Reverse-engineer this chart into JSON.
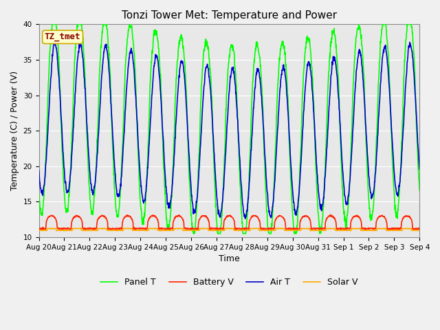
{
  "title": "Tonzi Tower Met: Temperature and Power",
  "xlabel": "Time",
  "ylabel": "Temperature (C) / Power (V)",
  "ylim": [
    10,
    40
  ],
  "n_days": 15,
  "bg_color": "#e8e8e8",
  "fig_color": "#f0f0f0",
  "grid_color": "#ffffff",
  "series": {
    "panel_t": {
      "label": "Panel T",
      "color": "#00ff00",
      "lw": 1.2
    },
    "battery_v": {
      "label": "Battery V",
      "color": "#ff2200",
      "lw": 1.2
    },
    "air_t": {
      "label": "Air T",
      "color": "#0000cc",
      "lw": 1.2
    },
    "solar_v": {
      "label": "Solar V",
      "color": "#ffaa00",
      "lw": 1.2
    }
  },
  "tick_dates": [
    "Aug 20",
    "Aug 21",
    "Aug 22",
    "Aug 23",
    "Aug 24",
    "Aug 25",
    "Aug 26",
    "Aug 27",
    "Aug 28",
    "Aug 29",
    "Aug 30",
    "Aug 31",
    "Sep 1",
    "Sep 2",
    "Sep 3",
    "Sep 4"
  ],
  "yticks": [
    10,
    15,
    20,
    25,
    30,
    35,
    40
  ],
  "title_fontsize": 11,
  "axis_fontsize": 9,
  "tick_fontsize": 7.5,
  "legend_fontsize": 9,
  "annot_text": "TZ_tmet",
  "annot_color": "#8b0000",
  "annot_bg": "#ffffcc",
  "annot_edge": "#ccaa00"
}
